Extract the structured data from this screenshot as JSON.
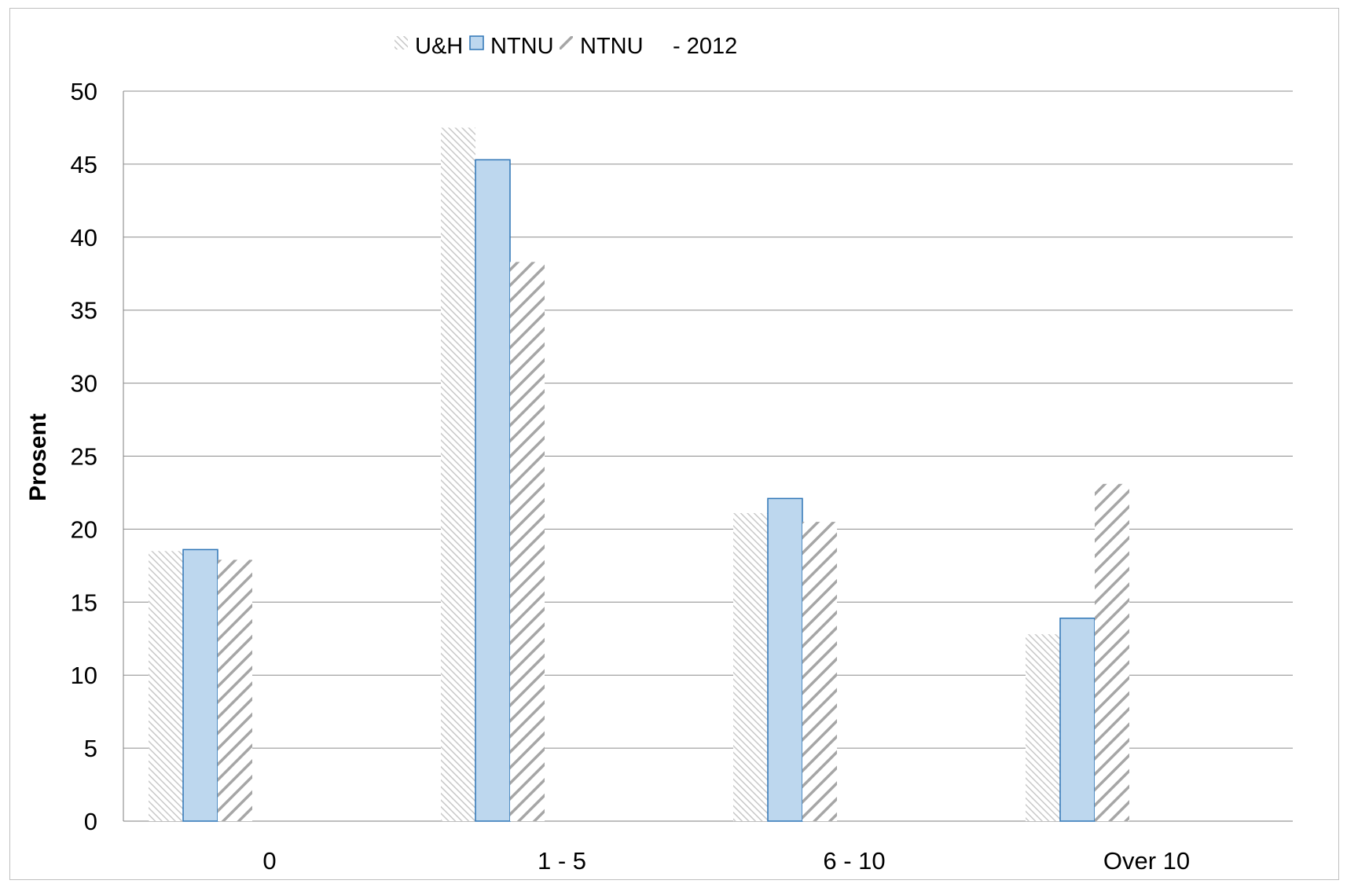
{
  "chart_data": {
    "type": "bar",
    "title": "",
    "xlabel": "",
    "ylabel": "Prosent",
    "ylim": [
      0,
      50
    ],
    "yticks": [
      0,
      5,
      10,
      15,
      20,
      25,
      30,
      35,
      40,
      45,
      50
    ],
    "grid": true,
    "legend_position": "top",
    "legend_suffix": "- 2012",
    "categories": [
      "0",
      "1 - 5",
      "6 - 10",
      "Over 10"
    ],
    "series": [
      {
        "name": "U&H",
        "values": [
          18.5,
          47.5,
          21.1,
          12.8
        ],
        "style": "light-hatch",
        "color": "#bfbfbf"
      },
      {
        "name": "NTNU",
        "values": [
          18.6,
          45.3,
          22.1,
          13.9
        ],
        "style": "solid",
        "color": "#bdd7ee",
        "border": "#2e75b6"
      },
      {
        "name": "NTNU",
        "values": [
          17.9,
          38.3,
          20.5,
          23.1
        ],
        "style": "dark-hatch",
        "color": "#a6a6a6"
      }
    ]
  }
}
